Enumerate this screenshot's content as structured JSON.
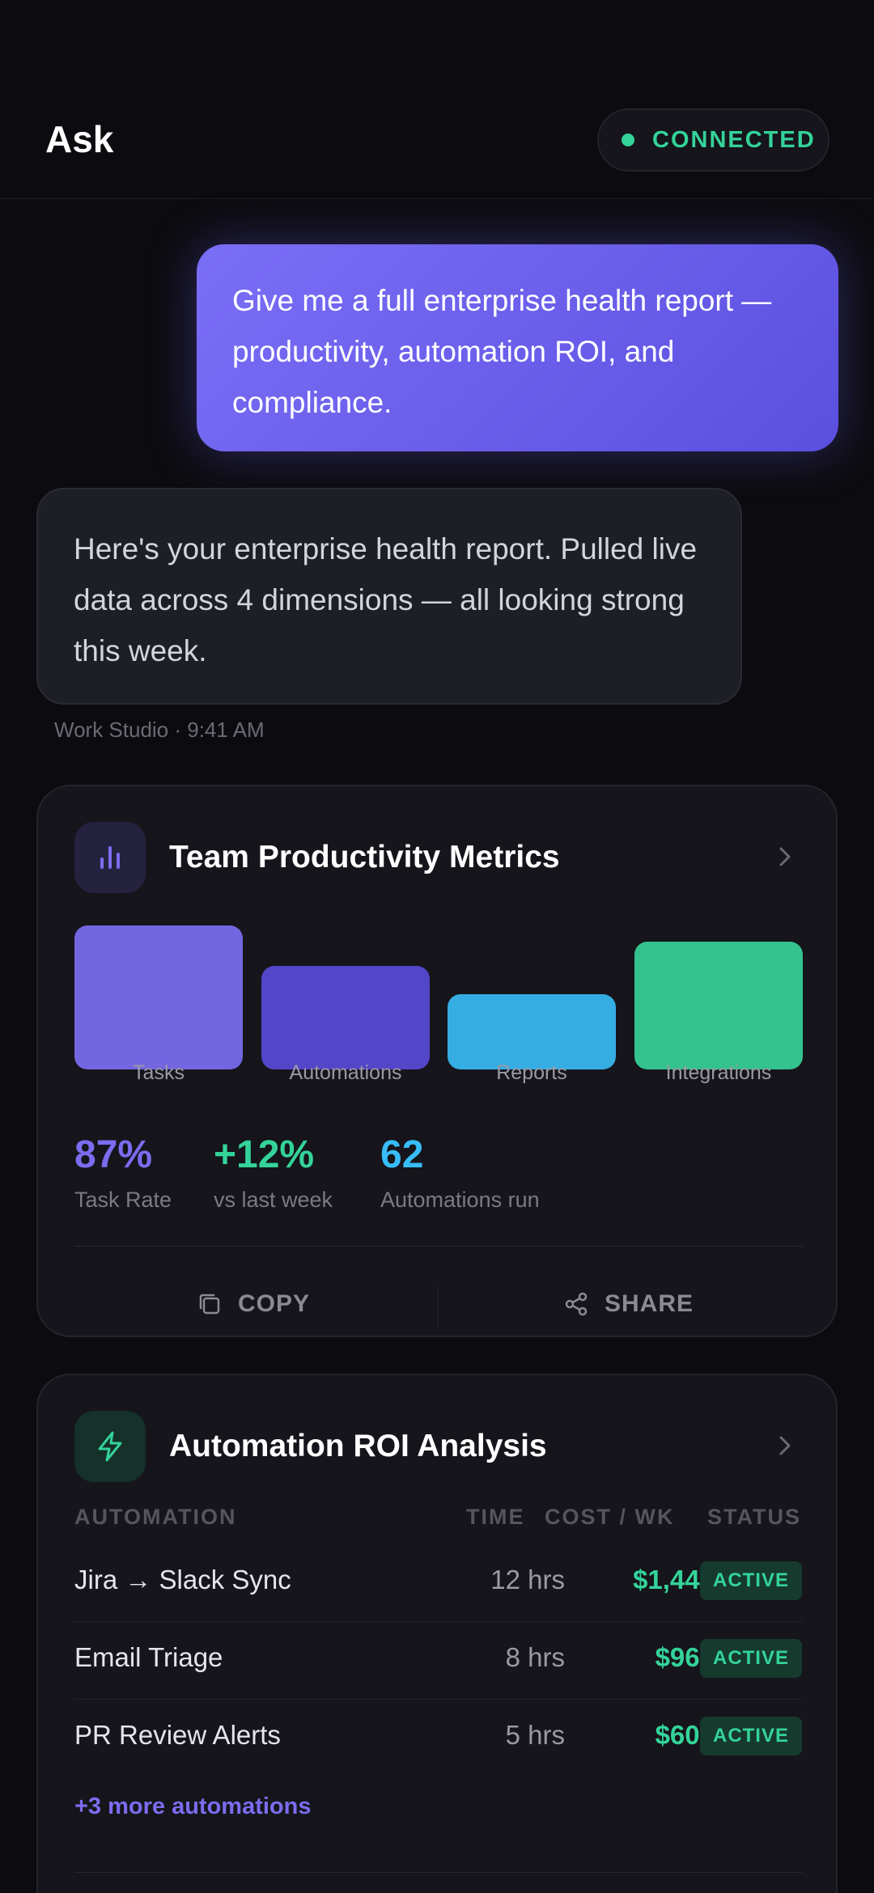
{
  "header": {
    "title": "Ask",
    "status": "CONNECTED"
  },
  "chat": {
    "user_message": "Give me a full enterprise health report — productivity, automation ROI, and compliance.",
    "assistant_message": "Here's your enterprise health report. Pulled live data across 4 dimensions — all looking strong this week.",
    "assistant_meta": "Work Studio · 9:41 AM"
  },
  "productivity_card": {
    "title": "Team Productivity Metrics",
    "chart_data": {
      "type": "bar",
      "categories": [
        "Tasks",
        "Automations",
        "Reports",
        "Integrations"
      ],
      "values": [
        100,
        72,
        52,
        89
      ],
      "colors": [
        "#7366e0",
        "#5346c9",
        "#35ade3",
        "#34c28e"
      ]
    },
    "stats": [
      {
        "value": "87%",
        "label": "Task Rate",
        "color": "#7c6cf0"
      },
      {
        "value": "+12%",
        "label": "vs last week",
        "color": "#34d399"
      },
      {
        "value": "62",
        "label": "Automations run",
        "color": "#38bdf8"
      }
    ],
    "actions": {
      "copy": "COPY",
      "share": "SHARE"
    }
  },
  "roi_card": {
    "title": "Automation ROI Analysis",
    "columns": {
      "automation": "AUTOMATION",
      "time": "TIME",
      "cost": "COST / WK",
      "status": "STATUS"
    },
    "rows": [
      {
        "name": "Jira → Slack Sync",
        "time": "12 hrs",
        "cost": "$1,440",
        "status": "ACTIVE"
      },
      {
        "name": "Email Triage",
        "time": "8 hrs",
        "cost": "$960",
        "status": "ACTIVE"
      },
      {
        "name": "PR Review Alerts",
        "time": "5 hrs",
        "cost": "$600",
        "status": "ACTIVE"
      }
    ],
    "more_link": "+3 more automations"
  },
  "icons": [
    "bar-chart-icon",
    "chevron-right-icon",
    "lightning-icon",
    "copy-icon",
    "share-icon"
  ]
}
